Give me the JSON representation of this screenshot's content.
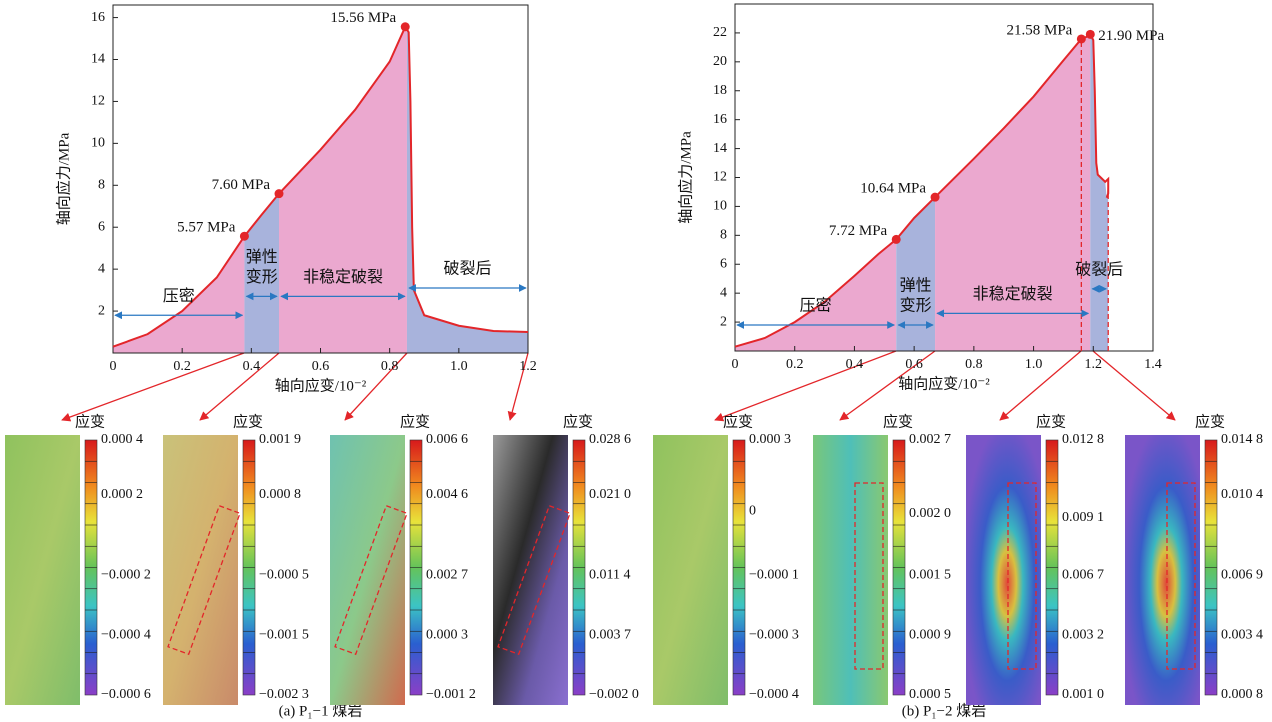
{
  "chart_data": [
    {
      "type": "area",
      "x_label": "轴向应变/10⁻²",
      "y_label": "轴向应力/MPa",
      "caption": "(a) P₁−1 煤岩",
      "xlim": [
        0,
        1.2
      ],
      "xticks": [
        0,
        0.2,
        0.4,
        0.6,
        0.8,
        {
          "value": 1,
          "label": "1.0"
        },
        1.2
      ],
      "ylim": [
        0,
        16.6
      ],
      "yticks": [
        2,
        4,
        6,
        8,
        10,
        12,
        14,
        16
      ],
      "color": "#e3262a",
      "x": [
        0,
        0.1,
        0.2,
        0.3,
        0.38,
        0.43,
        0.48,
        0.6,
        0.7,
        0.8,
        0.845,
        0.855,
        0.86,
        0.865,
        0.87,
        0.9,
        1.0,
        1.1,
        1.2
      ],
      "values": [
        0.3,
        0.9,
        2.0,
        3.6,
        5.57,
        6.6,
        7.6,
        9.7,
        11.6,
        13.9,
        15.56,
        15.3,
        12,
        6,
        3,
        1.8,
        1.3,
        1.05,
        1.0
      ],
      "points": [
        {
          "x": 0.38,
          "y": 5.57,
          "label": "5.57 MPa"
        },
        {
          "x": 0.48,
          "y": 7.6,
          "label": "7.60 MPa"
        },
        {
          "x": 0.845,
          "y": 15.56,
          "label": "15.56 MPa"
        }
      ],
      "stages": [
        {
          "name": [
            "压密"
          ],
          "from": 0,
          "to": 0.38,
          "arrow_y": 1.8,
          "color": "#eba8cf"
        },
        {
          "name": [
            "弹性",
            "变形"
          ],
          "from": 0.38,
          "to": 0.48,
          "arrow_y": 2.7,
          "color": "#a8b3dc"
        },
        {
          "name": [
            "非稳定破裂"
          ],
          "from": 0.48,
          "to": 0.85,
          "arrow_y": 2.7,
          "color": "#eba8cf"
        },
        {
          "name": [
            "破裂后"
          ],
          "from": 0.85,
          "to": 1.2,
          "arrow_y": 3.1,
          "color": "#a8b3dc"
        }
      ],
      "dashed_x": []
    },
    {
      "type": "area",
      "x_label": "轴向应变/10⁻²",
      "y_label": "轴向应力/MPa",
      "caption": "(b) P₁−2 煤岩",
      "xlim": [
        0,
        1.4
      ],
      "xticks": [
        0,
        0.2,
        0.4,
        0.6,
        0.8,
        {
          "value": 1,
          "label": "1.0"
        },
        1.2,
        1.4
      ],
      "ylim": [
        0,
        24
      ],
      "yticks": [
        2,
        4,
        6,
        8,
        10,
        12,
        14,
        16,
        18,
        20,
        22
      ],
      "color": "#e3262a",
      "x": [
        0,
        0.1,
        0.2,
        0.3,
        0.4,
        0.48,
        0.54,
        0.6,
        0.67,
        0.8,
        0.9,
        1.0,
        1.1,
        1.16,
        1.18,
        1.19,
        1.2,
        1.205,
        1.21,
        1.215,
        1.24,
        1.25,
        1.25,
        1.245
      ],
      "values": [
        0.3,
        0.9,
        2.0,
        3.4,
        5.2,
        6.7,
        7.72,
        9.2,
        10.64,
        13.3,
        15.4,
        17.6,
        20.1,
        21.58,
        21.75,
        21.9,
        21.5,
        18,
        13,
        12.2,
        11.7,
        11.9,
        10.9,
        10.6
      ],
      "points": [
        {
          "x": 0.54,
          "y": 7.72,
          "label": "7.72 MPa"
        },
        {
          "x": 0.67,
          "y": 10.64,
          "label": "10.64 MPa"
        },
        {
          "x": 1.16,
          "y": 21.58,
          "label": "21.58 MPa"
        },
        {
          "x": 1.19,
          "y": 21.9,
          "label": "21.90 MPa"
        }
      ],
      "stages": [
        {
          "name": [
            "压密"
          ],
          "from": 0,
          "to": 0.54,
          "arrow_y": 1.8,
          "color": "#eba8cf"
        },
        {
          "name": [
            "弹性",
            "变形"
          ],
          "from": 0.54,
          "to": 0.67,
          "arrow_y": 1.8,
          "color": "#a8b3dc"
        },
        {
          "name": [
            "非稳定破裂"
          ],
          "from": 0.67,
          "to": 1.19,
          "arrow_y": 2.6,
          "color": "#eba8cf"
        },
        {
          "name": [
            "破裂后"
          ],
          "from": 1.19,
          "to": 1.25,
          "arrow_y": 4.3,
          "color": "#a8b3dc"
        }
      ],
      "dashed_x": [
        1.16,
        1.25
      ]
    }
  ],
  "strain_maps": [
    {
      "label": "应变",
      "ticks": [
        "0.000 4",
        "0.000 2",
        "−0.000 2",
        "−0.000 4",
        "−0.000 6"
      ]
    },
    {
      "label": "应变",
      "ticks": [
        "0.001 9",
        "0.000 8",
        "−0.000 5",
        "−0.001 5",
        "−0.002 3"
      ]
    },
    {
      "label": "应变",
      "ticks": [
        "0.006 6",
        "0.004 6",
        "0.002 7",
        "0.000 3",
        "−0.001 2"
      ]
    },
    {
      "label": "应变",
      "ticks": [
        "0.028 6",
        "0.021 0",
        "0.011 4",
        "0.003 7",
        "−0.002 0"
      ]
    },
    {
      "label": "应变",
      "ticks": [
        "0.000 3",
        "0",
        "−0.000 1",
        "−0.000 3",
        "−0.000 4"
      ]
    },
    {
      "label": "应变",
      "ticks": [
        "0.002 7",
        "0.002 0",
        "0.001 5",
        "0.000 9",
        "0.000 5"
      ]
    },
    {
      "label": "应变",
      "ticks": [
        "0.012 8",
        "0.009 1",
        "0.006 7",
        "0.003 2",
        "0.001 0"
      ]
    },
    {
      "label": "应变",
      "ticks": [
        "0.014 8",
        "0.010 4",
        "0.006 9",
        "0.003 4",
        "0.000 8"
      ]
    }
  ]
}
